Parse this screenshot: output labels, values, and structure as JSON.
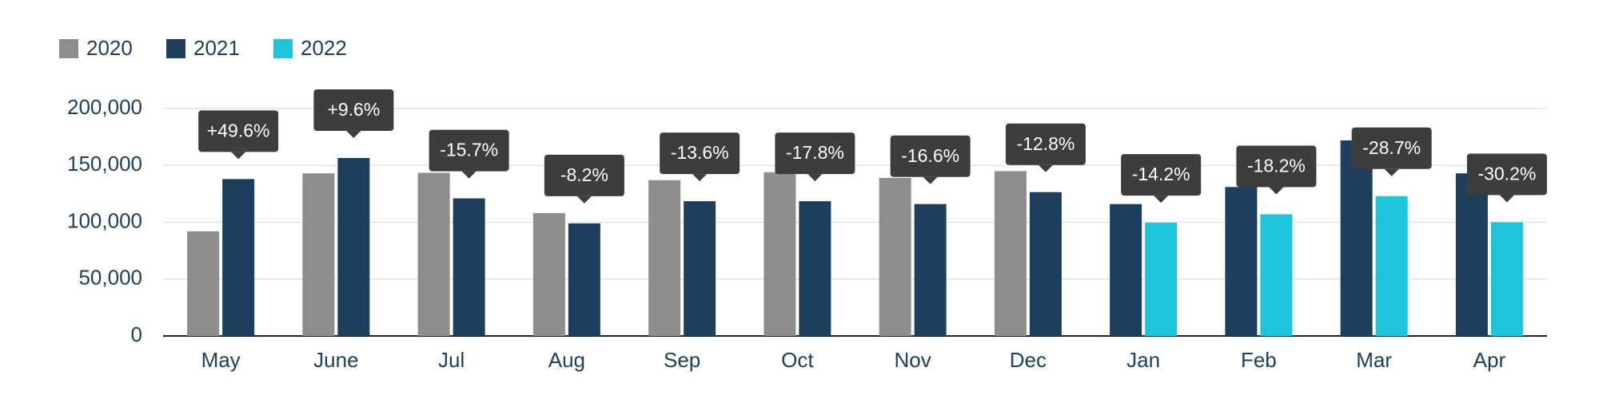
{
  "chart_data": {
    "type": "bar",
    "categories": [
      "May",
      "June",
      "Jul",
      "Aug",
      "Sep",
      "Oct",
      "Nov",
      "Dec",
      "Jan",
      "Feb",
      "Mar",
      "Apr"
    ],
    "series": [
      {
        "name": "2020",
        "color": "#8c8d8e",
        "values": [
          92000,
          143000,
          143500,
          108000,
          137000,
          144000,
          139000,
          145000,
          null,
          null,
          null,
          null
        ]
      },
      {
        "name": "2021",
        "color": "#1d3f5d",
        "values": [
          138000,
          156500,
          121000,
          99000,
          118500,
          118500,
          116000,
          126500,
          116000,
          131000,
          172000,
          143000
        ]
      },
      {
        "name": "2022",
        "color": "#1cc5dc",
        "values": [
          null,
          null,
          null,
          null,
          null,
          null,
          null,
          null,
          99600,
          107000,
          123000,
          100000
        ]
      }
    ],
    "change_labels": [
      "+49.6%",
      "+9.6%",
      "-15.7%",
      "-8.2%",
      "-13.6%",
      "-17.8%",
      "-16.6%",
      "-12.8%",
      "-14.2%",
      "-18.2%",
      "-28.7%",
      "-30.2%"
    ],
    "ylim": [
      0,
      200000
    ],
    "yticks": [
      0,
      {
        "value": 50000,
        "label": "50,000"
      },
      {
        "value": 100000,
        "label": "100,000"
      },
      {
        "value": 150000,
        "label": "150,000"
      },
      {
        "value": 200000,
        "label": "200,000"
      }
    ],
    "grid": true
  }
}
